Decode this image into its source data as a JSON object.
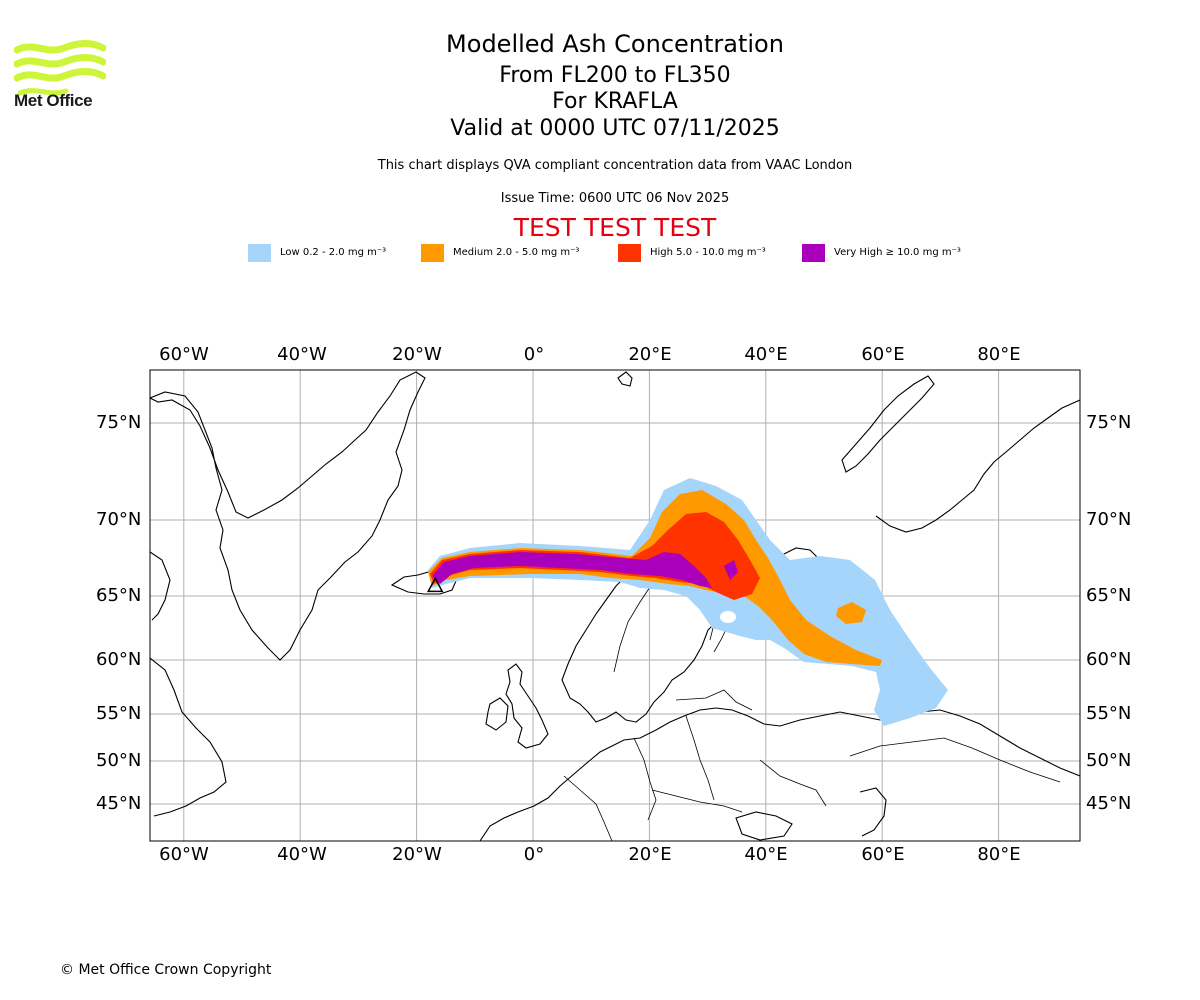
{
  "logo": {
    "text": "Met Office",
    "color": "#cdf53a"
  },
  "title": {
    "line1": "Modelled Ash Concentration",
    "line2": "From FL200 to FL350",
    "line3": "For KRAFLA",
    "line4": "Valid at 0000 UTC 07/11/2025"
  },
  "subtitle": "This chart displays QVA compliant concentration data from VAAC London",
  "issue_time": "Issue Time: 0600 UTC 06 Nov 2025",
  "test_banner": "TEST TEST TEST",
  "legend": [
    {
      "label": "Low 0.2 - 2.0 mg m⁻³",
      "color": "#a5d5fb"
    },
    {
      "label": "Medium 2.0 - 5.0 mg m⁻³",
      "color": "#ff9900"
    },
    {
      "label": "High 5.0 - 10.0 mg m⁻³",
      "color": "#ff3300"
    },
    {
      "label": "Very High ≥ 10.0 mg m⁻³",
      "color": "#aa00bb"
    }
  ],
  "axes": {
    "lon_labels": [
      "60°W",
      "40°W",
      "20°W",
      "0°",
      "20°E",
      "40°E",
      "60°E",
      "80°E"
    ],
    "lat_labels": [
      "75°N",
      "70°N",
      "65°N",
      "60°N",
      "55°N",
      "50°N",
      "45°N"
    ],
    "lon_range": [
      -66,
      94
    ],
    "lat_range": [
      42,
      78
    ]
  },
  "volcano": {
    "name": "KRAFLA",
    "lat": 65.7,
    "lon": -16.8
  },
  "copyright": "© Met Office Crown Copyright"
}
